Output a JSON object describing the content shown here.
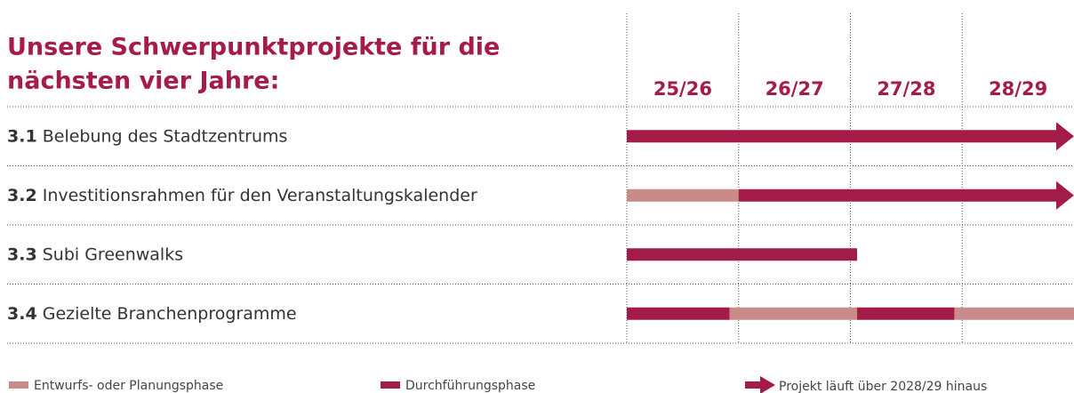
{
  "chart_data": {
    "type": "gantt",
    "title": [
      "Unsere Schwerpunktprojekte für die",
      "nächsten vier Jahre:"
    ],
    "periods": [
      "25/26",
      "26/27",
      "27/28",
      "28/29"
    ],
    "xlim": [
      0,
      4
    ],
    "series": [
      {
        "name": "Entwurfs- oder Planungsphase",
        "color": "#c98a8a"
      },
      {
        "name": "Durchführungsphase",
        "color": "#a31b47"
      }
    ],
    "arrow_legend": "Projekt läuft über 2028/29 hinaus",
    "tasks": [
      {
        "number": "3.1",
        "label": "Belebung des Stadtzentrums",
        "arrow": true,
        "segments": [
          {
            "series": 1,
            "start": 0,
            "end": 4
          }
        ]
      },
      {
        "number": "3.2",
        "label": "Investitionsrahmen für den Veranstaltungskalender",
        "arrow": true,
        "segments": [
          {
            "series": 0,
            "start": 0,
            "end": 1
          },
          {
            "series": 1,
            "start": 1,
            "end": 4
          }
        ]
      },
      {
        "number": "3.3",
        "label": "Subi Greenwalks",
        "arrow": false,
        "segments": [
          {
            "series": 1,
            "start": 0,
            "end": 2.06
          }
        ]
      },
      {
        "number": "3.4",
        "label": "Gezielte Branchenprogramme",
        "arrow": false,
        "segments": [
          {
            "series": 1,
            "start": 0,
            "end": 0.92
          },
          {
            "series": 0,
            "start": 0.92,
            "end": 2.06
          },
          {
            "series": 1,
            "start": 2.06,
            "end": 2.93
          },
          {
            "series": 0,
            "start": 2.93,
            "end": 4
          }
        ]
      }
    ]
  }
}
